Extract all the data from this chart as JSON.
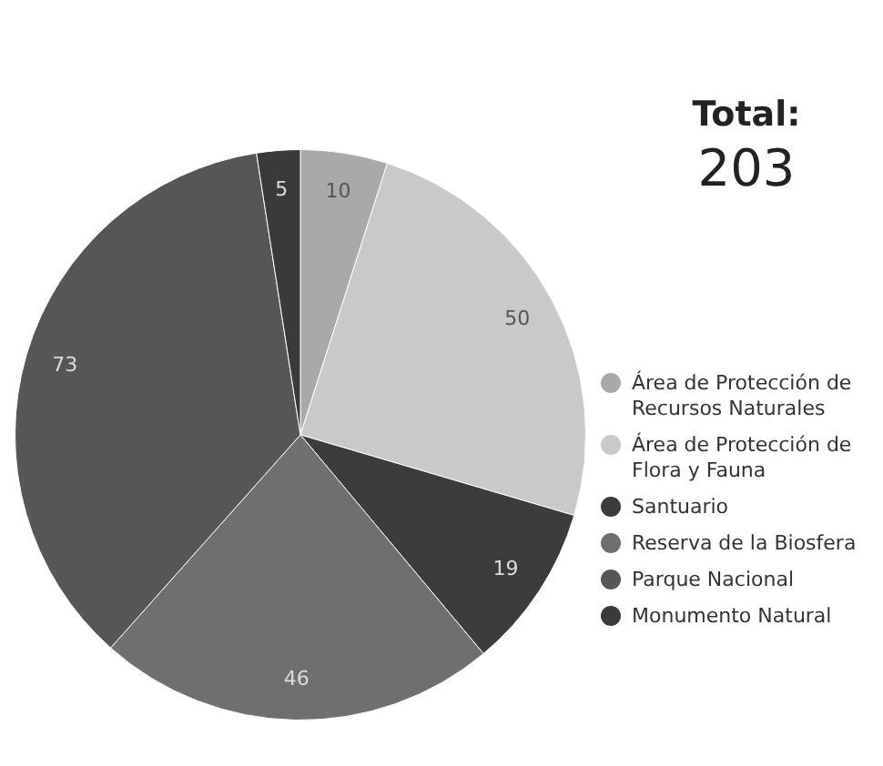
{
  "chart_data": {
    "type": "pie",
    "title": "Total:",
    "subtitle": "203",
    "categories": [
      "Área de Protección de Recursos Naturales",
      "Área de Protección de Flora y Fauna",
      "Santuario",
      "Reserva de la Biosfera",
      "Parque Nacional",
      "Monumento Natural"
    ],
    "values": [
      10,
      50,
      19,
      46,
      73,
      5
    ],
    "colors": [
      "#a9a9a9",
      "#c9c9c9",
      "#3c3c3c",
      "#6f6f6f",
      "#565656",
      "#3a3a3a"
    ],
    "data_labels": true,
    "legend": "right"
  }
}
